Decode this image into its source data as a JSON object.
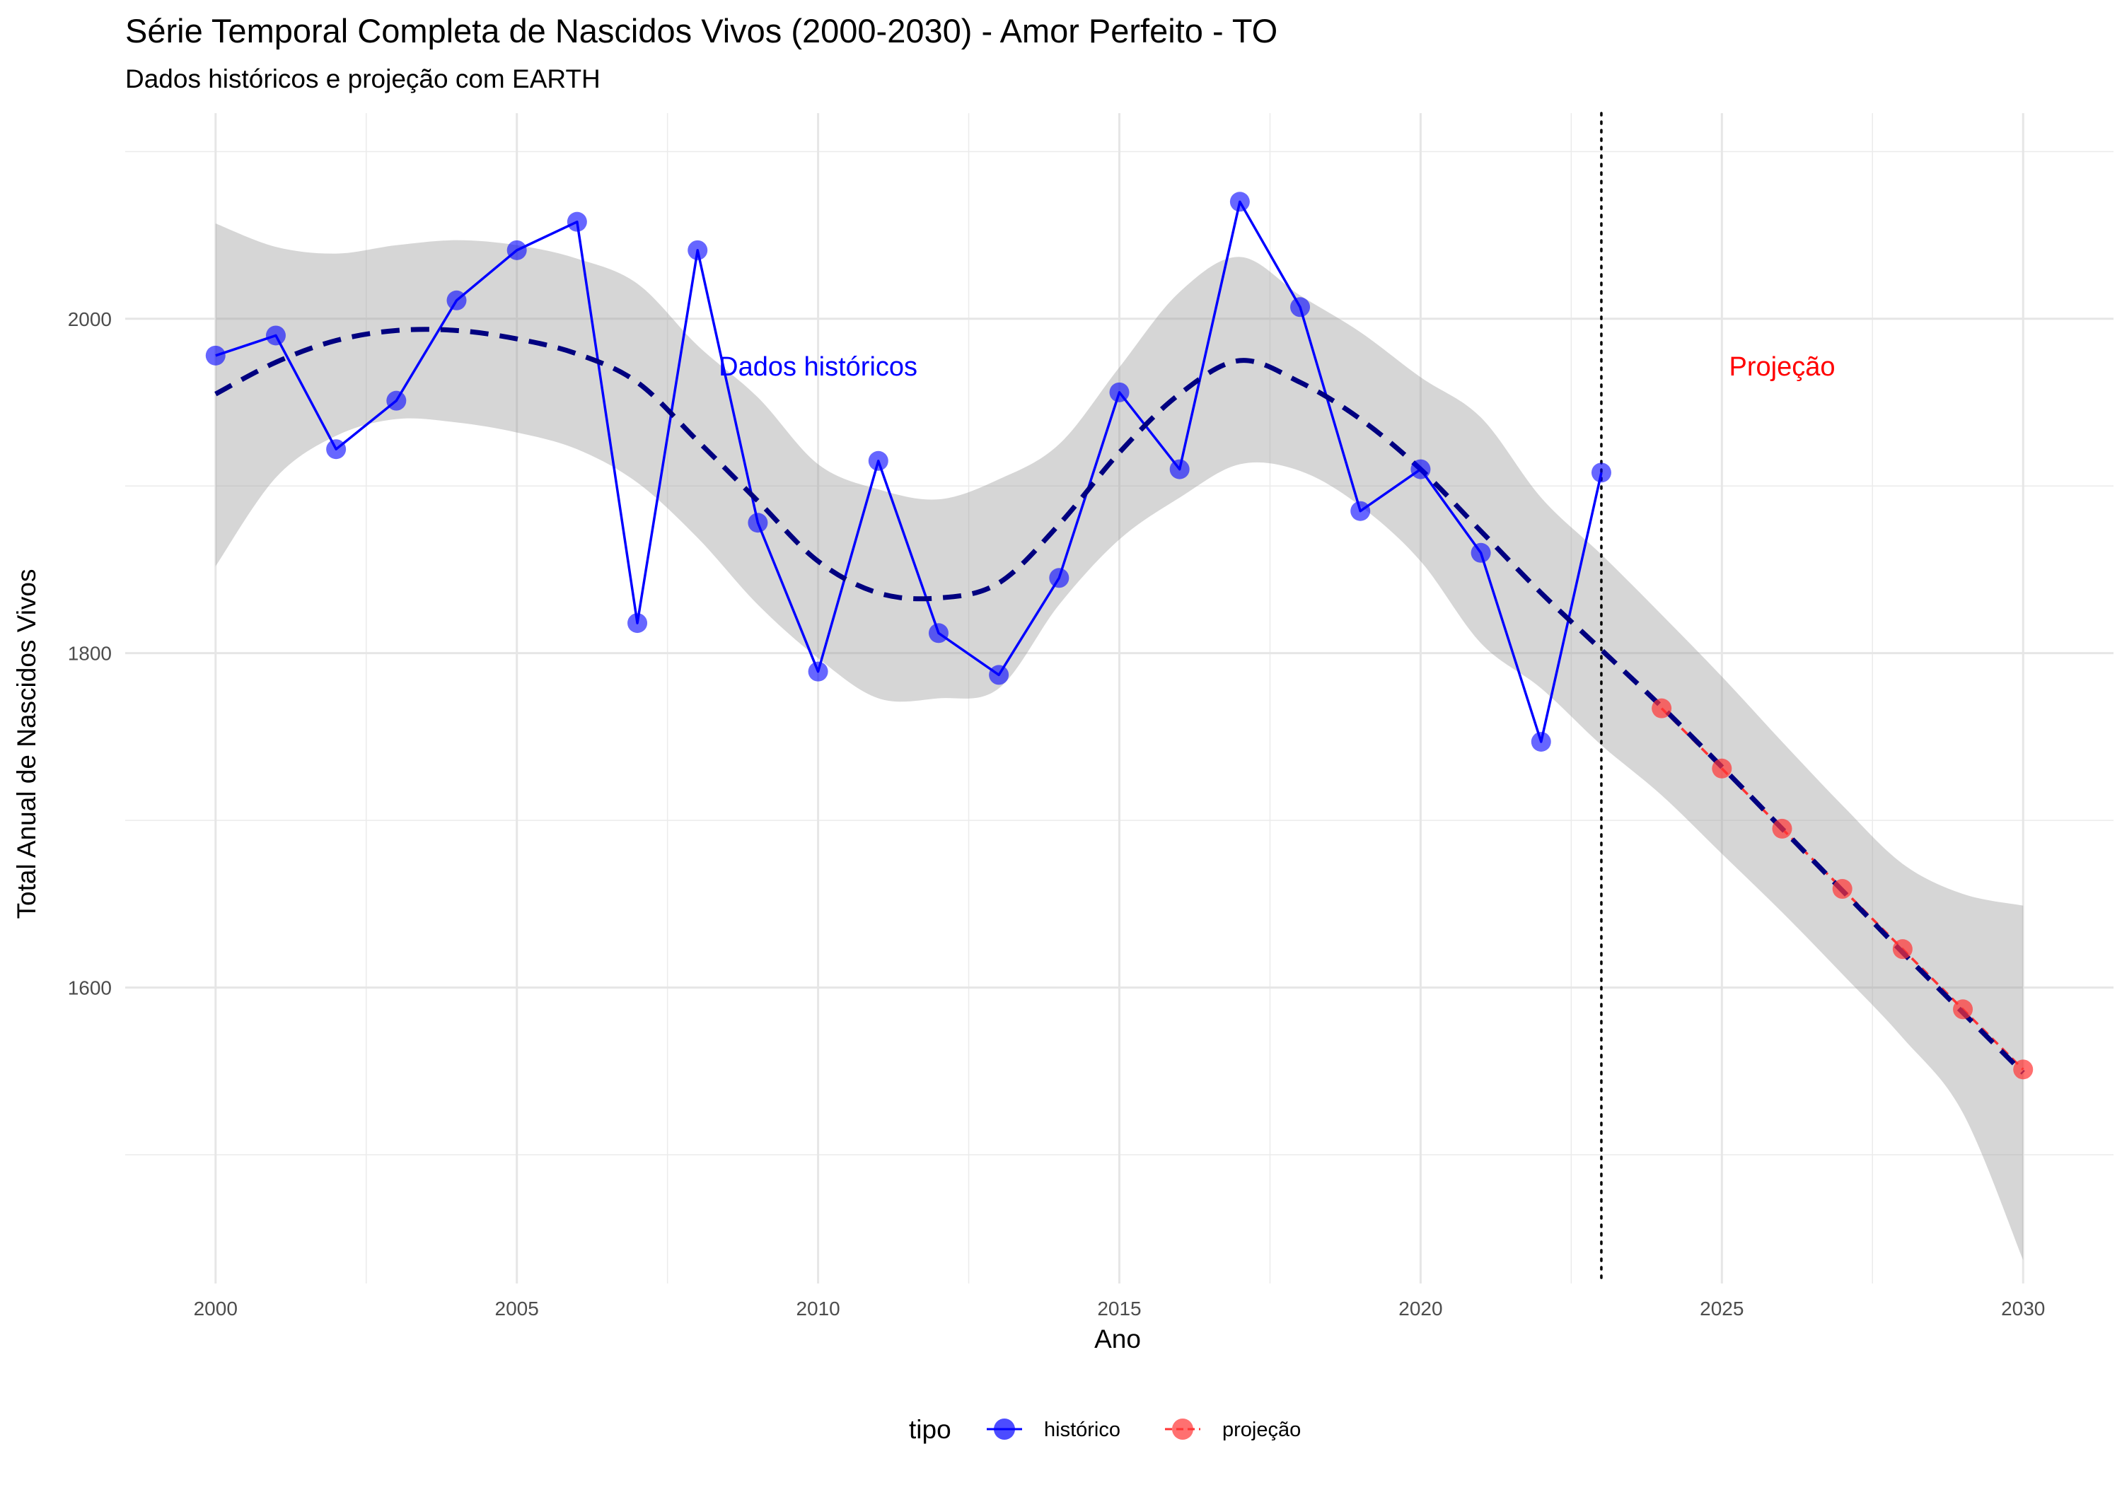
{
  "chart_data": {
    "type": "line",
    "title": "Série Temporal Completa de Nascidos Vivos (2000-2030) -  Amor Perfeito - TO",
    "subtitle": "Dados históricos e projeção com EARTH",
    "xlabel": "Ano",
    "ylabel": "Total Anual de Nascidos Vivos",
    "xlim": [
      1998.5,
      2031.5
    ],
    "ylim": [
      1423,
      2123
    ],
    "x_ticks": [
      2000,
      2005,
      2010,
      2015,
      2020,
      2025,
      2030
    ],
    "x_tick_labels": [
      "2000",
      "2005",
      "2010",
      "2015",
      "2020",
      "2025",
      "2030"
    ],
    "y_ticks": [
      1600,
      1800,
      2000
    ],
    "y_tick_labels": [
      "1600",
      "1800",
      "2000"
    ],
    "grid": true,
    "series": [
      {
        "name": "histórico",
        "color": "#0000ff",
        "x": [
          2000,
          2001,
          2002,
          2003,
          2004,
          2005,
          2006,
          2007,
          2008,
          2009,
          2010,
          2011,
          2012,
          2013,
          2014,
          2015,
          2016,
          2017,
          2018,
          2019,
          2020,
          2021,
          2022,
          2023
        ],
        "y": [
          1978,
          1990,
          1922,
          1951,
          2011,
          2041,
          2058,
          1818,
          2041,
          1878,
          1789,
          1915,
          1812,
          1787,
          1845,
          1956,
          1910,
          2070,
          2007,
          1885,
          1910,
          1860,
          1747,
          1908
        ]
      },
      {
        "name": "projeção",
        "color": "#ff3333",
        "x": [
          2024,
          2025,
          2026,
          2027,
          2028,
          2029,
          2030
        ],
        "y": [
          1767,
          1731,
          1695,
          1659,
          1623,
          1587,
          1551
        ]
      }
    ],
    "trend": {
      "color": "#000080",
      "x": [
        2000,
        2001,
        2002,
        2003,
        2004,
        2005,
        2006,
        2007,
        2008,
        2009,
        2010,
        2011,
        2012,
        2013,
        2014,
        2015,
        2016,
        2017,
        2018,
        2019,
        2020,
        2021,
        2022,
        2023,
        2024,
        2025,
        2026,
        2027,
        2028,
        2029,
        2030
      ],
      "y": [
        1955,
        1974,
        1987,
        1993,
        1993,
        1988,
        1979,
        1962,
        1927,
        1891,
        1855,
        1836,
        1833,
        1842,
        1877,
        1920,
        1955,
        1975,
        1962,
        1940,
        1910,
        1873,
        1836,
        1802,
        1768,
        1732,
        1695,
        1658,
        1621,
        1585,
        1549
      ],
      "band_lower": [
        1852,
        1905,
        1930,
        1940,
        1938,
        1932,
        1922,
        1902,
        1869,
        1829,
        1797,
        1773,
        1773,
        1779,
        1829,
        1868,
        1893,
        1913,
        1909,
        1888,
        1855,
        1806,
        1779,
        1745,
        1715,
        1680,
        1645,
        1608,
        1570,
        1525,
        1437
      ],
      "band_upper": [
        2057,
        2043,
        2039,
        2044,
        2047,
        2044,
        2036,
        2021,
        1984,
        1953,
        1913,
        1898,
        1892,
        1904,
        1925,
        1971,
        2016,
        2037,
        2014,
        1992,
        1965,
        1941,
        1893,
        1859,
        1823,
        1786,
        1747,
        1709,
        1674,
        1656,
        1649
      ]
    },
    "vline": {
      "x": 2023
    },
    "annotations": [
      {
        "text": "Dados históricos",
        "x": 2010,
        "y": 1966,
        "color": "#0000ff"
      },
      {
        "text": "Projeção",
        "x": 2026,
        "y": 1966,
        "color": "#ff0000"
      }
    ],
    "legend": {
      "title": "tipo",
      "position": "bottom",
      "entries": [
        "histórico",
        "projeção"
      ]
    }
  }
}
